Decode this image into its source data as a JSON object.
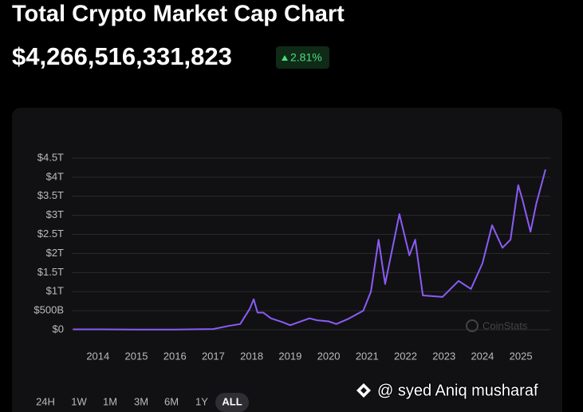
{
  "header": {
    "title": "Total Crypto Market Cap Chart",
    "price": "$4,266,516,331,823",
    "change": "2.81%"
  },
  "chart_data": {
    "type": "line",
    "x": [
      2013.35,
      2014.0,
      2015.0,
      2016.0,
      2017.0,
      2017.4,
      2017.7,
      2017.95,
      2018.05,
      2018.15,
      2018.3,
      2018.5,
      2018.8,
      2019.0,
      2019.5,
      2019.7,
      2020.0,
      2020.2,
      2020.5,
      2020.9,
      2021.1,
      2021.3,
      2021.47,
      2021.84,
      2022.1,
      2022.25,
      2022.45,
      2022.96,
      2023.38,
      2023.7,
      2024.0,
      2024.25,
      2024.52,
      2024.73,
      2024.93,
      2025.04,
      2025.25,
      2025.4,
      2025.64
    ],
    "series": [
      {
        "color": "#8b5cf6",
        "values": [
          0.01,
          0.01,
          0.005,
          0.007,
          0.018,
          0.1,
          0.15,
          0.55,
          0.8,
          0.45,
          0.45,
          0.3,
          0.2,
          0.12,
          0.3,
          0.25,
          0.22,
          0.15,
          0.28,
          0.5,
          1.0,
          2.36,
          1.2,
          3.03,
          1.95,
          2.36,
          0.9,
          0.86,
          1.28,
          1.07,
          1.74,
          2.74,
          2.15,
          2.36,
          3.79,
          3.41,
          2.57,
          3.3,
          4.2
        ]
      }
    ],
    "xlim": [
      2013.32,
      2025.64
    ],
    "xticks": [
      2014,
      2015,
      2016,
      2017,
      2018,
      2019,
      2020,
      2021,
      2022,
      2023,
      2024,
      2025
    ],
    "ylim": [
      0,
      4.5
    ],
    "yticks": [
      {
        "value": 0,
        "label": "$0"
      },
      {
        "value": 0.5,
        "label": "$500B"
      },
      {
        "value": 1,
        "label": "$1T"
      },
      {
        "value": 1.5,
        "label": "$1.5T"
      },
      {
        "value": 2,
        "label": "$2T"
      },
      {
        "value": 2.5,
        "label": "$2.5T"
      },
      {
        "value": 3,
        "label": "$3T"
      },
      {
        "value": 3.5,
        "label": "$3.5T"
      },
      {
        "value": 4,
        "label": "$4T"
      },
      {
        "value": 4.5,
        "label": "$4.5T"
      }
    ],
    "grid": true,
    "watermark": "CoinStats"
  },
  "ranges": [
    "24H",
    "1W",
    "1M",
    "3M",
    "6M",
    "1Y",
    "ALL"
  ],
  "active_range": 6,
  "credit": "@ syed Aniq musharaf"
}
